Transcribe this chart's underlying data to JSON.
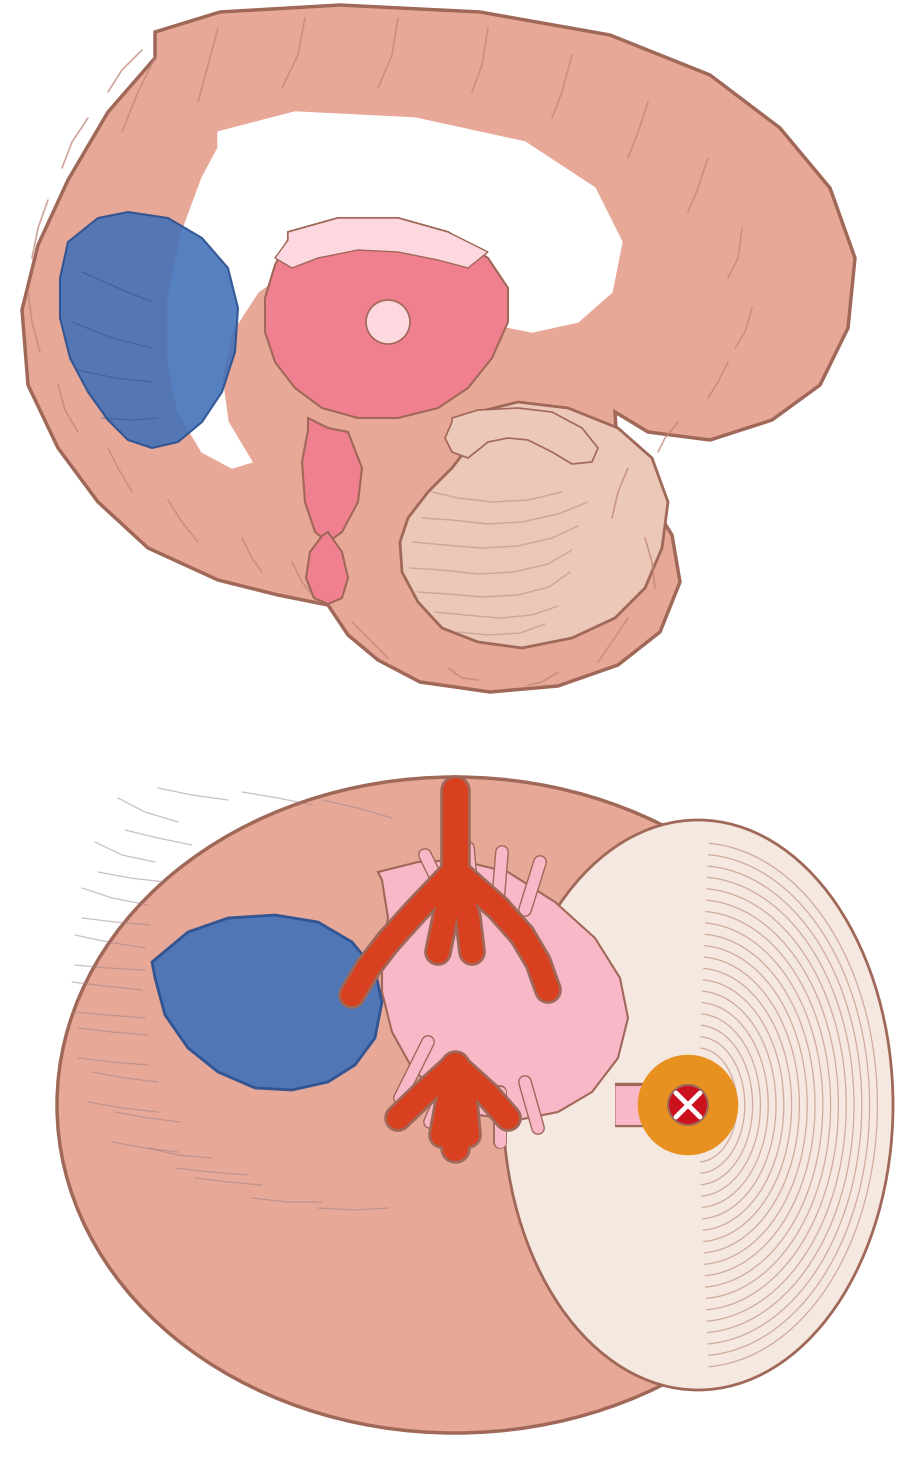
{
  "bg_color": "#ffffff",
  "brain_pink2": "#E8A898",
  "pink_structure": "#F08090",
  "pink_light": "#F9B8C8",
  "pink_lighter": "#FDD8E0",
  "blue": "#4472B8",
  "blue_dark": "#2A5090",
  "red_orange": "#D84020",
  "red": "#CC1020",
  "orange": "#E89020",
  "outline_color": "#A06858",
  "gyrus_line": "#C08878",
  "cerebellum_bg": "#ECC8B8",
  "cerebellum_lines": "#C8A090",
  "white_matter": "#F5E8E0",
  "gyrus_inferior": "#9A8088"
}
